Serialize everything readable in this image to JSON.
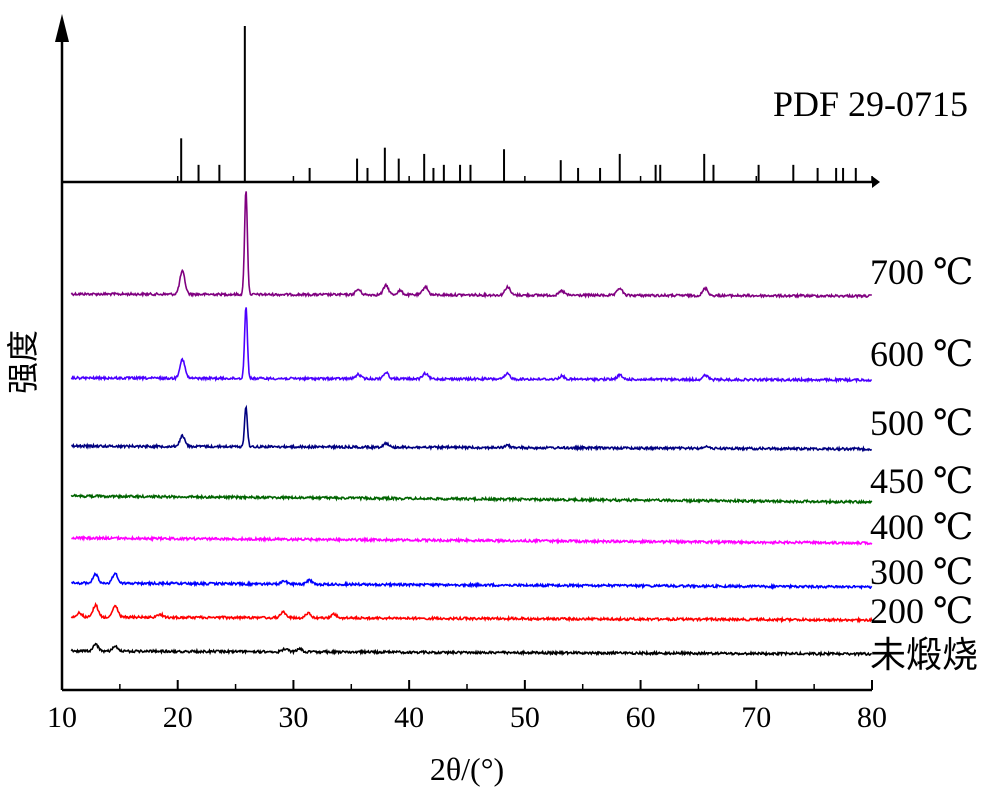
{
  "chart_data": {
    "type": "line",
    "xlabel": "2θ/(°)",
    "ylabel": "强度",
    "xlim": [
      10,
      80
    ],
    "x_ticks": [
      "10",
      "20",
      "30",
      "40",
      "50",
      "60",
      "70",
      "80"
    ],
    "grid": false,
    "reference": {
      "name": "PDF 29-0715",
      "peaks": [
        {
          "x": 20.3,
          "i": 28
        },
        {
          "x": 21.8,
          "i": 11
        },
        {
          "x": 23.6,
          "i": 11
        },
        {
          "x": 25.8,
          "i": 100
        },
        {
          "x": 31.4,
          "i": 9
        },
        {
          "x": 35.5,
          "i": 15
        },
        {
          "x": 36.4,
          "i": 9
        },
        {
          "x": 37.9,
          "i": 22
        },
        {
          "x": 39.1,
          "i": 15
        },
        {
          "x": 41.3,
          "i": 18
        },
        {
          "x": 42.1,
          "i": 9
        },
        {
          "x": 43.0,
          "i": 11
        },
        {
          "x": 44.4,
          "i": 11
        },
        {
          "x": 45.3,
          "i": 11
        },
        {
          "x": 48.2,
          "i": 21
        },
        {
          "x": 53.1,
          "i": 14
        },
        {
          "x": 54.6,
          "i": 9
        },
        {
          "x": 56.5,
          "i": 9
        },
        {
          "x": 58.2,
          "i": 18
        },
        {
          "x": 61.3,
          "i": 11
        },
        {
          "x": 61.7,
          "i": 11
        },
        {
          "x": 65.5,
          "i": 18
        },
        {
          "x": 66.3,
          "i": 11
        },
        {
          "x": 70.2,
          "i": 11
        },
        {
          "x": 73.2,
          "i": 11
        },
        {
          "x": 75.3,
          "i": 9
        },
        {
          "x": 76.9,
          "i": 9
        },
        {
          "x": 77.5,
          "i": 9
        },
        {
          "x": 78.6,
          "i": 9
        }
      ]
    },
    "series": [
      {
        "name": "700 ℃",
        "color": "#800080",
        "peaks": [
          {
            "x": 20.4,
            "h": 22
          },
          {
            "x": 25.9,
            "h": 100
          },
          {
            "x": 35.6,
            "h": 5
          },
          {
            "x": 38.0,
            "h": 9
          },
          {
            "x": 39.2,
            "h": 4
          },
          {
            "x": 41.4,
            "h": 8
          },
          {
            "x": 48.5,
            "h": 8
          },
          {
            "x": 53.2,
            "h": 4
          },
          {
            "x": 58.2,
            "h": 7
          },
          {
            "x": 65.6,
            "h": 7
          }
        ]
      },
      {
        "name": "600 ℃",
        "color": "#4b00ff",
        "peaks": [
          {
            "x": 20.4,
            "h": 18
          },
          {
            "x": 25.9,
            "h": 68
          },
          {
            "x": 35.6,
            "h": 4
          },
          {
            "x": 38.0,
            "h": 6
          },
          {
            "x": 41.4,
            "h": 5
          },
          {
            "x": 48.5,
            "h": 5
          },
          {
            "x": 53.2,
            "h": 3
          },
          {
            "x": 58.2,
            "h": 4
          },
          {
            "x": 65.6,
            "h": 4
          }
        ]
      },
      {
        "name": "500 ℃",
        "color": "#000080",
        "peaks": [
          {
            "x": 20.4,
            "h": 10
          },
          {
            "x": 25.9,
            "h": 38
          },
          {
            "x": 38.0,
            "h": 4
          },
          {
            "x": 48.5,
            "h": 2
          },
          {
            "x": 65.6,
            "h": 2
          }
        ]
      },
      {
        "name": "450 ℃",
        "color": "#006400",
        "peaks": []
      },
      {
        "name": "400 ℃",
        "color": "#ff00ff",
        "peaks": []
      },
      {
        "name": "300 ℃",
        "color": "#0000ff",
        "peaks": [
          {
            "x": 12.9,
            "h": 9
          },
          {
            "x": 14.6,
            "h": 10
          },
          {
            "x": 29.2,
            "h": 3
          },
          {
            "x": 31.4,
            "h": 4
          }
        ]
      },
      {
        "name": "200 ℃",
        "color": "#ff0000",
        "peaks": [
          {
            "x": 11.5,
            "h": 4
          },
          {
            "x": 12.9,
            "h": 12
          },
          {
            "x": 14.6,
            "h": 11
          },
          {
            "x": 18.5,
            "h": 3
          },
          {
            "x": 29.1,
            "h": 6
          },
          {
            "x": 31.3,
            "h": 5
          },
          {
            "x": 33.5,
            "h": 4
          }
        ]
      },
      {
        "name": "未煅烧",
        "color": "#000000",
        "peaks": [
          {
            "x": 12.9,
            "h": 7
          },
          {
            "x": 14.6,
            "h": 5
          },
          {
            "x": 29.3,
            "h": 3
          },
          {
            "x": 30.5,
            "h": 3
          }
        ]
      }
    ]
  }
}
